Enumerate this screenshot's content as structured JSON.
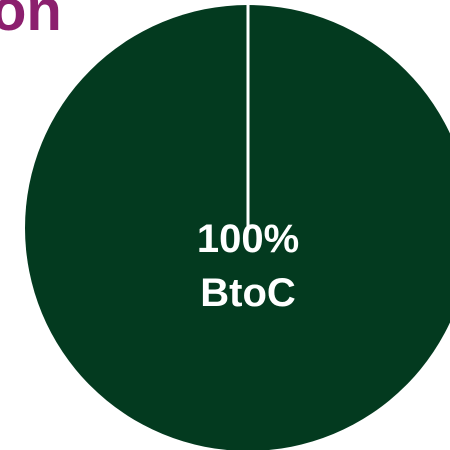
{
  "chart_data": {
    "type": "pie",
    "title": "on",
    "categories": [
      "BtoC"
    ],
    "values": [
      100
    ],
    "value_labels": [
      "100%"
    ],
    "colors": [
      "#033a1f"
    ]
  }
}
